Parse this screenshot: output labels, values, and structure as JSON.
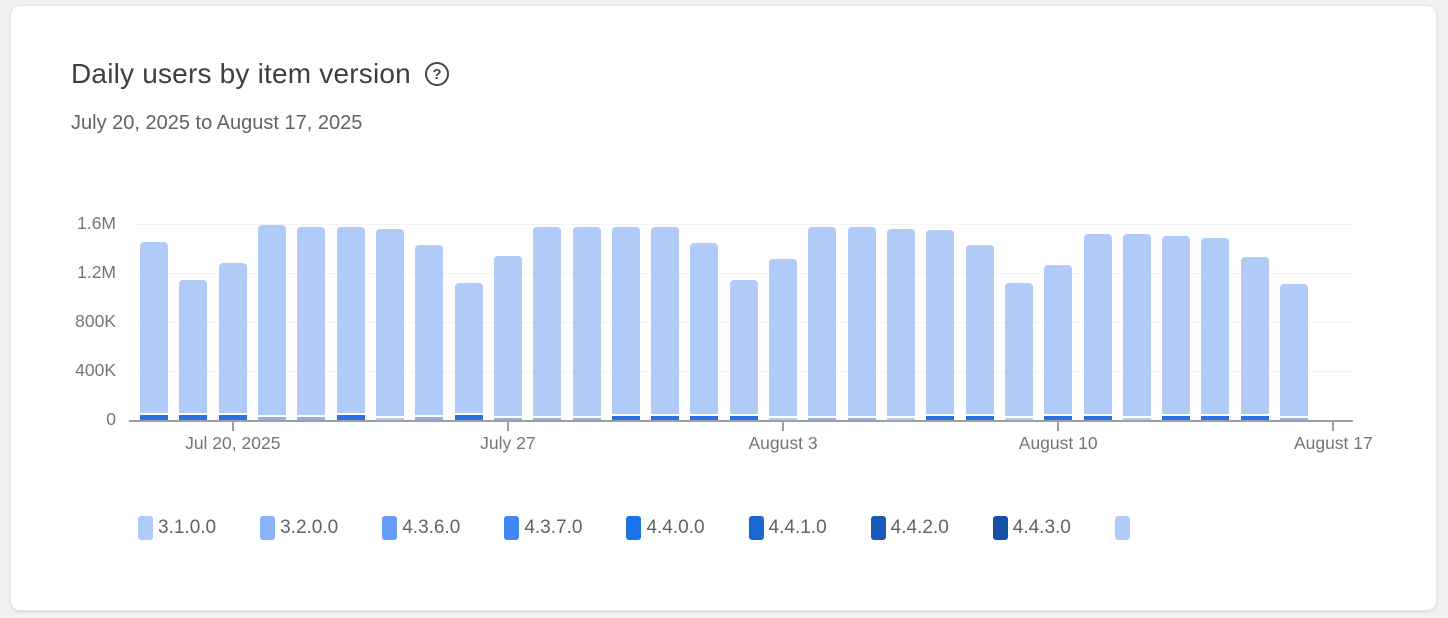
{
  "page": {
    "background": "#eff1f2"
  },
  "card": {
    "title": "Daily users by item version",
    "help_icon": "?",
    "subtitle": "July 20, 2025 to August 17, 2025"
  },
  "chart_data": {
    "type": "bar",
    "stacked": true,
    "title": "Daily users by item version",
    "date_range": "July 20, 2025 to August 17, 2025",
    "first_bar_date": "2025-07-18",
    "last_bar_date": "2025-08-16",
    "ylim": [
      0,
      1600000
    ],
    "grid": true,
    "y_ticks": [
      {
        "value": 0,
        "label": "0"
      },
      {
        "value": 400000,
        "label": "400K"
      },
      {
        "value": 800000,
        "label": "800K"
      },
      {
        "value": 1200000,
        "label": "1.2M"
      },
      {
        "value": 1600000,
        "label": "1.6M"
      }
    ],
    "slot_count": 31,
    "x_ticks": [
      {
        "slot": 2,
        "label": "Jul 20, 2025"
      },
      {
        "slot": 9,
        "label": "July 27"
      },
      {
        "slot": 16,
        "label": "August 3"
      },
      {
        "slot": 23,
        "label": "August 10"
      },
      {
        "slot": 30,
        "label": "August 17"
      }
    ],
    "legend_position": "bottom",
    "legend": [
      {
        "label": "3.1.0.0",
        "color": "#aecbfa"
      },
      {
        "label": "3.2.0.0",
        "color": "#8ab4f8"
      },
      {
        "label": "4.3.6.0",
        "color": "#669df6"
      },
      {
        "label": "4.3.7.0",
        "color": "#4285f4"
      },
      {
        "label": "4.4.0.0",
        "color": "#1b73e8"
      },
      {
        "label": "4.4.1.0",
        "color": "#1967d2"
      },
      {
        "label": "4.4.2.0",
        "color": "#185abc"
      },
      {
        "label": "4.4.3.0",
        "color": "#174ea6"
      },
      {
        "label": "",
        "color": "#aecbfa"
      }
    ],
    "colors": {
      "bar_body": "#b1cbf9",
      "base_bright": "#2b70e0",
      "base_medium": "#8ab1f5",
      "base_pale": "#b6cdfa",
      "axis": "#9aa0a6",
      "gridline": "#f1f3f4",
      "tick_label": "#757575"
    },
    "bars": [
      {
        "total": 1450000,
        "base": "bright",
        "base_value": 40000
      },
      {
        "total": 1140000,
        "base": "bright",
        "base_value": 40000
      },
      {
        "total": 1280000,
        "base": "bright",
        "base_value": 40000
      },
      {
        "total": 1590000,
        "base": "medium",
        "base_value": 25000
      },
      {
        "total": 1570000,
        "base": "medium",
        "base_value": 25000
      },
      {
        "total": 1570000,
        "base": "bright",
        "base_value": 40000
      },
      {
        "total": 1560000,
        "base": "pale",
        "base_value": 20000
      },
      {
        "total": 1430000,
        "base": "medium",
        "base_value": 25000
      },
      {
        "total": 1120000,
        "base": "bright",
        "base_value": 40000
      },
      {
        "total": 1340000,
        "base": "medium",
        "base_value": 20000
      },
      {
        "total": 1570000,
        "base": "medium",
        "base_value": 20000
      },
      {
        "total": 1570000,
        "base": "medium",
        "base_value": 20000
      },
      {
        "total": 1570000,
        "base": "bright",
        "base_value": 35000
      },
      {
        "total": 1570000,
        "base": "bright",
        "base_value": 35000
      },
      {
        "total": 1440000,
        "base": "bright",
        "base_value": 35000
      },
      {
        "total": 1140000,
        "base": "bright",
        "base_value": 35000
      },
      {
        "total": 1310000,
        "base": "pale",
        "base_value": 15000
      },
      {
        "total": 1570000,
        "base": "medium",
        "base_value": 20000
      },
      {
        "total": 1570000,
        "base": "medium",
        "base_value": 20000
      },
      {
        "total": 1560000,
        "base": "pale",
        "base_value": 15000
      },
      {
        "total": 1550000,
        "base": "bright",
        "base_value": 35000
      },
      {
        "total": 1430000,
        "base": "bright",
        "base_value": 35000
      },
      {
        "total": 1120000,
        "base": "pale",
        "base_value": 15000
      },
      {
        "total": 1260000,
        "base": "bright",
        "base_value": 35000
      },
      {
        "total": 1520000,
        "base": "bright",
        "base_value": 35000
      },
      {
        "total": 1520000,
        "base": "pale",
        "base_value": 15000
      },
      {
        "total": 1500000,
        "base": "bright",
        "base_value": 35000
      },
      {
        "total": 1480000,
        "base": "bright",
        "base_value": 35000
      },
      {
        "total": 1330000,
        "base": "bright",
        "base_value": 35000
      },
      {
        "total": 1110000,
        "base": "medium",
        "base_value": 20000
      }
    ]
  }
}
